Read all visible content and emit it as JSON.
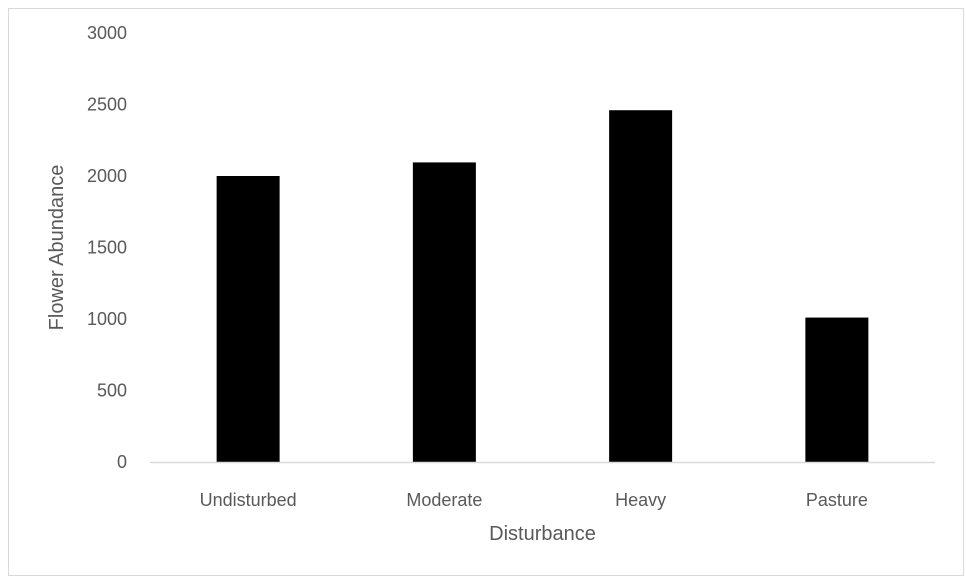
{
  "chart_data": {
    "type": "bar",
    "categories": [
      "Undisturbed",
      "Moderate",
      "Heavy",
      "Pasture"
    ],
    "values": [
      2000,
      2095,
      2460,
      1010
    ],
    "title": "",
    "xlabel": "Disturbance",
    "ylabel": "Flower Abundance",
    "ylim": [
      0,
      3000
    ],
    "yticks": [
      "0",
      "500",
      "1000",
      "1500",
      "2000",
      "2500",
      "3000"
    ],
    "grid": false,
    "legend": "none",
    "colors": {
      "bar": "#000000",
      "axis": "#d9d9d9",
      "text": "#595959"
    }
  }
}
